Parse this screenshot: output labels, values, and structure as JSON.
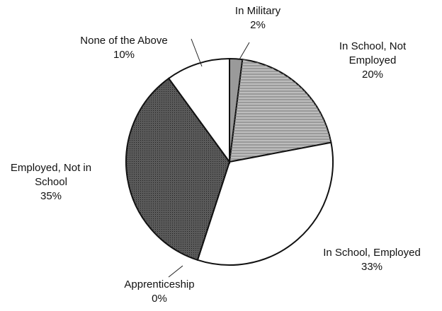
{
  "chart_data": {
    "type": "pie",
    "categories": [
      "In Military",
      "In School, Not Employed",
      "In School, Employed",
      "Apprenticeship",
      "Employed, Not in School",
      "None of the Above"
    ],
    "values": [
      2,
      20,
      33,
      0,
      35,
      10
    ],
    "value_labels": [
      "2%",
      "20%",
      "33%",
      "0%",
      "35%",
      "10%"
    ],
    "colors": [
      "#9a9a9a",
      "#bdbdbd",
      "#ffffff",
      "#ffffff",
      "#5a5a5a",
      "#ffffff"
    ]
  }
}
